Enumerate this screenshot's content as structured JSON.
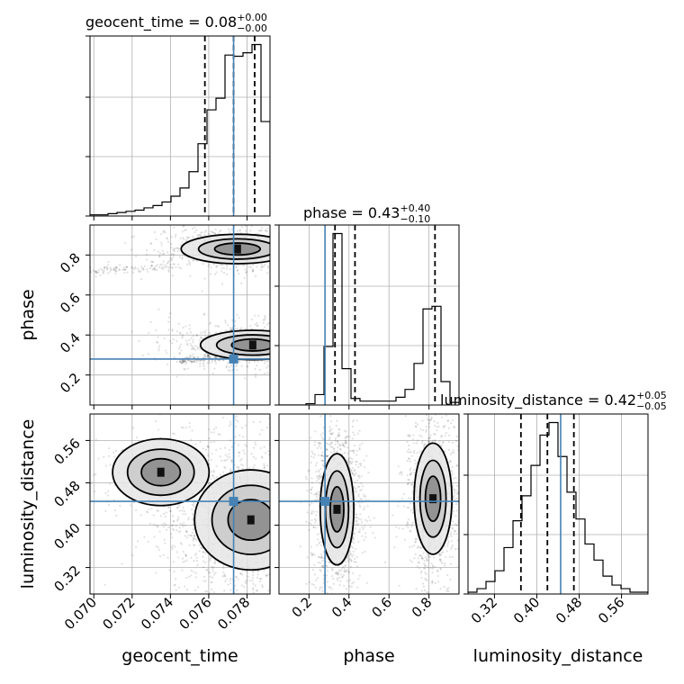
{
  "chart_data": {
    "type": "corner",
    "parameters": [
      "geocent_time",
      "phase",
      "luminosity_distance"
    ],
    "truths": {
      "geocent_time": 0.0773,
      "phase": 0.28,
      "luminosity_distance": 0.445
    },
    "truth_color": "#4682b4",
    "axis_ranges": {
      "geocent_time": [
        0.0698,
        0.0792
      ],
      "phase": [
        0.05,
        0.95
      ],
      "luminosity_distance": [
        0.27,
        0.61
      ]
    },
    "ticks": {
      "geocent_time": {
        "values": [
          0.07,
          0.072,
          0.074,
          0.076,
          0.078
        ],
        "labels": [
          "0.070",
          "0.072",
          "0.074",
          "0.076",
          "0.078"
        ]
      },
      "phase": {
        "values": [
          0.2,
          0.4,
          0.6,
          0.8
        ],
        "labels": [
          "0.2",
          "0.4",
          "0.6",
          "0.8"
        ]
      },
      "luminosity_distance": {
        "values": [
          0.32,
          0.4,
          0.48,
          0.56
        ],
        "labels": [
          "0.32",
          "0.40",
          "0.48",
          "0.56"
        ]
      }
    },
    "axis_labels": {
      "geocent_time": "geocent_time",
      "phase": "phase",
      "luminosity_distance": "luminosity_distance"
    },
    "grid": true,
    "titles": [
      {
        "param": "geocent_time",
        "text": "geocent_time = 0.08",
        "plus": "+0.00",
        "minus": "−0.00"
      },
      {
        "param": "phase",
        "text": "phase = 0.43",
        "plus": "+0.40",
        "minus": "−0.10"
      },
      {
        "param": "luminosity_distance",
        "text": "luminosity_distance = 0.42",
        "plus": "+0.05",
        "minus": "−0.05"
      }
    ],
    "quantiles": {
      "geocent_time": [
        0.0758,
        0.0773,
        0.0784
      ],
      "phase": [
        0.33,
        0.43,
        0.83
      ],
      "luminosity_distance": [
        0.37,
        0.42,
        0.47
      ]
    },
    "histograms": {
      "geocent_time": {
        "edges": [
          0.0698,
          0.07027,
          0.07074,
          0.07121,
          0.07168,
          0.07215,
          0.07262,
          0.07309,
          0.07356,
          0.07403,
          0.0745,
          0.07497,
          0.07544,
          0.07591,
          0.07638,
          0.07685,
          0.07732,
          0.07779,
          0.07826,
          0.07873,
          0.0792
        ],
        "counts": [
          1,
          1,
          2,
          3,
          4,
          5,
          7,
          9,
          12,
          17,
          24,
          38,
          62,
          91,
          101,
          138,
          137,
          140,
          147,
          81
        ]
      },
      "phase": {
        "edges": [
          0.05,
          0.095,
          0.14,
          0.185,
          0.23,
          0.275,
          0.32,
          0.365,
          0.41,
          0.455,
          0.5,
          0.545,
          0.59,
          0.635,
          0.68,
          0.725,
          0.77,
          0.815,
          0.86,
          0.905,
          0.95
        ],
        "counts": [
          0,
          0,
          0,
          1,
          8,
          45,
          132,
          28,
          5,
          3,
          3,
          3,
          3,
          6,
          12,
          32,
          74,
          76,
          18,
          2
        ]
      },
      "luminosity_distance": {
        "edges": [
          0.27,
          0.287,
          0.304,
          0.321,
          0.338,
          0.355,
          0.372,
          0.389,
          0.406,
          0.423,
          0.44,
          0.457,
          0.474,
          0.491,
          0.508,
          0.525,
          0.542,
          0.559,
          0.576,
          0.593,
          0.61
        ],
        "counts": [
          1,
          3,
          7,
          13,
          26,
          41,
          55,
          72,
          89,
          96,
          77,
          57,
          42,
          28,
          19,
          10,
          5,
          3,
          1,
          1
        ]
      }
    },
    "joint_modes": [
      {
        "x": "geocent_time",
        "y": "phase",
        "modes": [
          {
            "cx": 0.0775,
            "cy": 0.83,
            "sx": 0.0014,
            "sy": 0.035,
            "w": 0.45
          },
          {
            "cx": 0.0783,
            "cy": 0.35,
            "sx": 0.0013,
            "sy": 0.035,
            "w": 0.5
          },
          {
            "cx": 0.0725,
            "cy": 0.74,
            "sx": 0.0012,
            "sy": 0.02,
            "w": 0.05
          }
        ]
      },
      {
        "x": "geocent_time",
        "y": "luminosity_distance",
        "modes": [
          {
            "cx": 0.0782,
            "cy": 0.41,
            "sx": 0.0014,
            "sy": 0.045,
            "w": 0.85
          },
          {
            "cx": 0.0735,
            "cy": 0.5,
            "sx": 0.0012,
            "sy": 0.03,
            "w": 0.15
          }
        ]
      },
      {
        "x": "phase",
        "y": "luminosity_distance",
        "modes": [
          {
            "cx": 0.34,
            "cy": 0.43,
            "sx": 0.04,
            "sy": 0.05,
            "w": 0.52
          },
          {
            "cx": 0.82,
            "cy": 0.45,
            "sx": 0.045,
            "sy": 0.05,
            "w": 0.48
          }
        ]
      }
    ]
  }
}
